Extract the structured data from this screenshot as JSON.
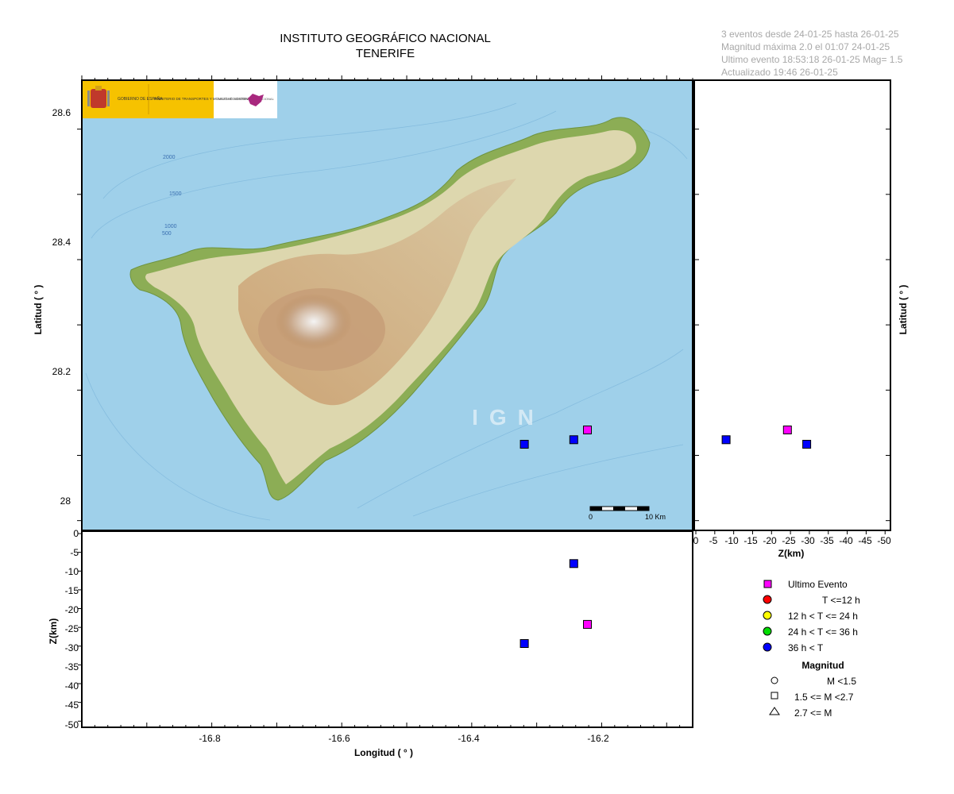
{
  "title": {
    "line1": "INSTITUTO GEOGRÁFICO NACIONAL",
    "line2": "TENERIFE"
  },
  "info": {
    "line1": "3 eventos desde 24-01-25 hasta 26-01-25",
    "line2": "Magnitud máxima 2.0 el 01:07 24-01-25",
    "line3": "Ultimo evento   18:53:18 26-01-25  Mag= 1.5",
    "line4": "Actualizado   19:46  26-01-25"
  },
  "logos": {
    "gobierno": "GOBIERNO DE ESPAÑA",
    "ministerio": "MINISTERIO DE TRANSPORTES Y MOVILIDAD SOSTENIBLE",
    "ign": "INSTITUTO GEOGRÁFICO NACIONAL"
  },
  "watermark": "IGN",
  "scale_bar": {
    "start_label": "0",
    "end_label": "10 Km"
  },
  "bathymetry_labels": [
    "2000",
    "1500",
    "1000",
    "500"
  ],
  "axes": {
    "map_ylabel": "Latitud ( ° )",
    "right_ylabel": "Latitud ( ° )",
    "right_xlabel": "Z(km)",
    "bottom_ylabel": "Z(km)",
    "bottom_xlabel": "Longitud ( ° )",
    "lat_ticks": [
      "28.6",
      "28.4",
      "28.2",
      "28"
    ],
    "lon_ticks": [
      "-16.8",
      "-16.6",
      "-16.4",
      "-16.2"
    ],
    "depth_ticks": [
      "0",
      "-5",
      "-10",
      "-15",
      "-20",
      "-25",
      "-30",
      "-35",
      "-40",
      "-45",
      "-50"
    ]
  },
  "legend": {
    "items": [
      {
        "label": "Ultimo Evento",
        "color": "#ff00ff",
        "shape": "square"
      },
      {
        "label": "T <=12 h",
        "color": "#ff0000",
        "shape": "circle"
      },
      {
        "label": "12 h  < T <= 24 h",
        "color": "#ffff00",
        "shape": "circle"
      },
      {
        "label": "24 h  < T <= 36 h",
        "color": "#00dd00",
        "shape": "circle"
      },
      {
        "label": "36 h <  T",
        "color": "#0000ff",
        "shape": "circle"
      }
    ],
    "magnitude_title": "Magnitud",
    "magnitude_items": [
      {
        "label": "M <1.5",
        "shape": "circle-icon"
      },
      {
        "label": "1.5 <= M <2.7",
        "shape": "square-icon"
      },
      {
        "label": "2.7 <= M",
        "shape": "triangle-icon"
      }
    ]
  },
  "chart_data": {
    "type": "scatter",
    "x_range": [
      -17.0,
      -16.06
    ],
    "y_range": [
      27.985,
      28.675
    ],
    "z_range": [
      -51,
      0
    ],
    "events": [
      {
        "lon": -16.222,
        "lat": 28.139,
        "depth_km": -24.2,
        "category": "Ultimo Evento",
        "color": "#ff00ff"
      },
      {
        "lon": -16.243,
        "lat": 28.124,
        "depth_km": -8.0,
        "category": "36 h <  T",
        "color": "#0000ff"
      },
      {
        "lon": -16.319,
        "lat": 28.117,
        "depth_km": -29.3,
        "category": "36 h <  T",
        "color": "#0000ff"
      }
    ]
  }
}
